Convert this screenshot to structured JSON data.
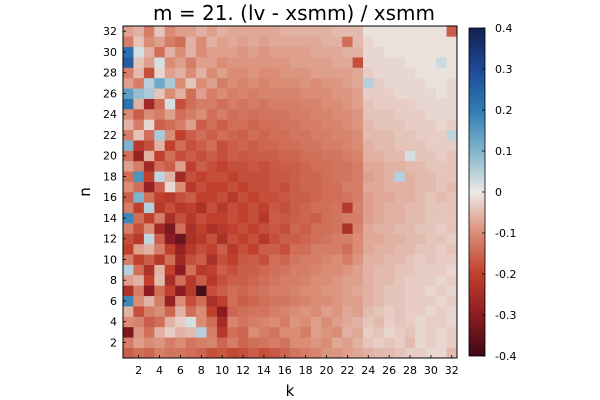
{
  "chart_data": {
    "type": "heatmap",
    "title": "m = 21. (lv - xsmm) / xsmm",
    "xlabel": "k",
    "ylabel": "n",
    "x_range": [
      1,
      32
    ],
    "y_range": [
      1,
      32
    ],
    "x_ticks": [
      2,
      4,
      6,
      8,
      10,
      12,
      14,
      16,
      18,
      20,
      22,
      24,
      26,
      28,
      30,
      32
    ],
    "y_ticks": [
      2,
      4,
      6,
      8,
      10,
      12,
      14,
      16,
      18,
      20,
      22,
      24,
      26,
      28,
      30,
      32
    ],
    "colorbar": {
      "range": [
        -0.4,
        0.4
      ],
      "ticks": [
        "0.4",
        "0.3",
        "0.2",
        "0.1",
        "0",
        "-0.1",
        "-0.2",
        "-0.3",
        "-0.4"
      ],
      "colormap": "diverging blue-white-red",
      "stops": [
        {
          "v": -0.4,
          "color": "#3c0a14"
        },
        {
          "v": -0.3,
          "color": "#8c1c22"
        },
        {
          "v": -0.2,
          "color": "#c0402d"
        },
        {
          "v": -0.1,
          "color": "#da8c75"
        },
        {
          "v": 0.0,
          "color": "#ece9e7"
        },
        {
          "v": 0.1,
          "color": "#80b4cc"
        },
        {
          "v": 0.2,
          "color": "#2e7cb4"
        },
        {
          "v": 0.3,
          "color": "#1e4896"
        },
        {
          "v": 0.4,
          "color": "#14204e"
        }
      ]
    },
    "grid": false,
    "legend": "colorbar-right",
    "row_profile_note": "values z[n][k] for n=1..32, k=1..32",
    "values": [
      [
        -0.16,
        -0.14,
        -0.15,
        -0.12,
        -0.13,
        -0.13,
        -0.14,
        -0.15,
        -0.18,
        -0.17,
        -0.19,
        -0.18,
        -0.16,
        -0.18,
        -0.17,
        -0.15,
        -0.13,
        -0.12,
        -0.11,
        -0.09,
        -0.09,
        -0.08,
        -0.07,
        -0.06,
        -0.05,
        -0.05,
        -0.04,
        -0.03,
        -0.03,
        -0.02,
        -0.02,
        -0.05
      ],
      [
        -0.12,
        -0.08,
        -0.1,
        -0.09,
        -0.12,
        -0.1,
        -0.13,
        -0.12,
        -0.11,
        -0.15,
        -0.12,
        -0.15,
        -0.14,
        -0.13,
        -0.12,
        -0.13,
        -0.1,
        -0.1,
        -0.09,
        -0.1,
        -0.07,
        -0.08,
        -0.06,
        -0.04,
        -0.03,
        -0.04,
        -0.03,
        -0.05,
        -0.02,
        -0.03,
        -0.02,
        -0.03
      ],
      [
        -0.32,
        -0.09,
        -0.14,
        -0.06,
        -0.03,
        -0.06,
        -0.05,
        0.05,
        -0.12,
        -0.22,
        -0.14,
        -0.15,
        -0.1,
        -0.12,
        -0.13,
        -0.1,
        -0.1,
        -0.12,
        -0.08,
        -0.09,
        -0.1,
        -0.06,
        -0.07,
        -0.03,
        -0.04,
        -0.02,
        -0.03,
        -0.04,
        -0.02,
        -0.03,
        -0.02,
        -0.03
      ],
      [
        -0.1,
        -0.11,
        -0.16,
        -0.14,
        -0.06,
        -0.03,
        0.02,
        -0.1,
        -0.14,
        -0.25,
        -0.11,
        -0.13,
        -0.12,
        -0.11,
        -0.1,
        -0.12,
        -0.09,
        -0.1,
        -0.08,
        -0.1,
        -0.08,
        -0.07,
        -0.06,
        -0.04,
        -0.05,
        -0.03,
        -0.04,
        -0.03,
        -0.02,
        -0.03,
        -0.03,
        -0.02
      ],
      [
        -0.06,
        -0.18,
        -0.12,
        -0.1,
        -0.15,
        -0.06,
        -0.14,
        -0.1,
        -0.2,
        -0.3,
        -0.15,
        -0.14,
        -0.13,
        -0.13,
        -0.12,
        -0.11,
        -0.1,
        -0.09,
        -0.1,
        -0.08,
        -0.09,
        -0.07,
        -0.08,
        -0.05,
        -0.04,
        -0.03,
        -0.04,
        -0.03,
        -0.03,
        -0.02,
        -0.03,
        -0.02
      ],
      [
        0.18,
        -0.1,
        -0.06,
        -0.12,
        -0.28,
        -0.1,
        -0.18,
        -0.14,
        -0.24,
        -0.2,
        -0.14,
        -0.16,
        -0.15,
        -0.14,
        -0.13,
        -0.13,
        -0.12,
        -0.11,
        -0.1,
        -0.1,
        -0.09,
        -0.08,
        -0.08,
        -0.06,
        -0.05,
        -0.04,
        -0.04,
        -0.03,
        -0.03,
        -0.03,
        -0.02,
        -0.03
      ],
      [
        -0.24,
        -0.12,
        -0.3,
        -0.14,
        -0.2,
        -0.3,
        -0.22,
        -0.38,
        -0.18,
        -0.16,
        -0.14,
        -0.15,
        -0.14,
        -0.13,
        -0.12,
        -0.12,
        -0.11,
        -0.1,
        -0.1,
        -0.09,
        -0.09,
        -0.08,
        -0.07,
        -0.06,
        -0.05,
        -0.04,
        -0.04,
        -0.03,
        -0.03,
        -0.02,
        -0.03,
        -0.02
      ],
      [
        -0.08,
        -0.06,
        -0.2,
        -0.05,
        -0.25,
        -0.14,
        -0.22,
        -0.16,
        -0.22,
        -0.18,
        -0.16,
        -0.16,
        -0.15,
        -0.14,
        -0.13,
        -0.12,
        -0.12,
        -0.11,
        -0.1,
        -0.1,
        -0.09,
        -0.08,
        -0.08,
        -0.06,
        -0.05,
        -0.05,
        -0.04,
        -0.03,
        -0.03,
        -0.03,
        -0.02,
        -0.03
      ],
      [
        0.05,
        -0.14,
        -0.24,
        -0.06,
        -0.2,
        -0.3,
        -0.14,
        -0.22,
        -0.2,
        -0.16,
        -0.18,
        -0.16,
        -0.16,
        -0.15,
        -0.14,
        -0.13,
        -0.12,
        -0.12,
        -0.11,
        -0.1,
        -0.1,
        -0.09,
        -0.08,
        -0.06,
        -0.05,
        -0.05,
        -0.04,
        -0.04,
        -0.03,
        -0.03,
        -0.03,
        -0.02
      ],
      [
        -0.12,
        -0.2,
        -0.16,
        -0.22,
        -0.14,
        -0.26,
        -0.18,
        -0.16,
        -0.24,
        -0.18,
        -0.2,
        -0.17,
        -0.16,
        -0.18,
        -0.14,
        -0.15,
        -0.13,
        -0.12,
        -0.12,
        -0.11,
        -0.1,
        -0.12,
        -0.09,
        -0.06,
        -0.06,
        -0.05,
        -0.05,
        -0.04,
        -0.03,
        -0.04,
        -0.03,
        -0.03
      ],
      [
        -0.2,
        -0.08,
        -0.06,
        -0.12,
        -0.2,
        -0.28,
        -0.22,
        -0.18,
        -0.2,
        -0.16,
        -0.22,
        -0.18,
        -0.2,
        -0.16,
        -0.16,
        -0.18,
        -0.14,
        -0.14,
        -0.12,
        -0.12,
        -0.12,
        -0.14,
        -0.1,
        -0.07,
        -0.06,
        -0.06,
        -0.05,
        -0.05,
        -0.04,
        -0.04,
        -0.03,
        -0.04
      ],
      [
        -0.18,
        -0.22,
        0.04,
        -0.16,
        -0.3,
        -0.34,
        -0.24,
        -0.22,
        -0.18,
        -0.24,
        -0.18,
        -0.2,
        -0.18,
        -0.22,
        -0.18,
        -0.16,
        -0.16,
        -0.15,
        -0.14,
        -0.13,
        -0.12,
        -0.12,
        -0.1,
        -0.07,
        -0.07,
        -0.06,
        -0.06,
        -0.05,
        -0.05,
        -0.04,
        -0.04,
        -0.03
      ],
      [
        -0.12,
        -0.18,
        -0.1,
        -0.26,
        -0.32,
        -0.14,
        -0.24,
        -0.2,
        -0.24,
        -0.22,
        -0.2,
        -0.18,
        -0.2,
        -0.18,
        -0.17,
        -0.18,
        -0.15,
        -0.16,
        -0.14,
        -0.14,
        -0.13,
        -0.24,
        -0.11,
        -0.07,
        -0.06,
        -0.06,
        -0.05,
        -0.05,
        -0.04,
        -0.04,
        -0.03,
        -0.04
      ],
      [
        0.18,
        -0.14,
        -0.2,
        -0.12,
        -0.24,
        -0.18,
        -0.22,
        -0.18,
        -0.2,
        -0.2,
        -0.18,
        -0.2,
        -0.18,
        -0.22,
        -0.16,
        -0.17,
        -0.16,
        -0.15,
        -0.16,
        -0.14,
        -0.13,
        -0.12,
        -0.12,
        -0.08,
        -0.07,
        -0.06,
        -0.06,
        -0.05,
        -0.05,
        -0.04,
        -0.04,
        -0.04
      ],
      [
        -0.12,
        -0.2,
        0.05,
        -0.22,
        -0.18,
        -0.22,
        -0.2,
        -0.24,
        -0.18,
        -0.22,
        -0.18,
        -0.2,
        -0.18,
        -0.2,
        -0.17,
        -0.18,
        -0.16,
        -0.15,
        -0.14,
        -0.14,
        -0.13,
        -0.22,
        -0.11,
        -0.08,
        -0.07,
        -0.06,
        -0.06,
        -0.05,
        -0.05,
        -0.04,
        -0.04,
        -0.04
      ],
      [
        -0.16,
        0.1,
        -0.14,
        -0.2,
        -0.22,
        -0.18,
        -0.16,
        -0.2,
        -0.2,
        -0.18,
        -0.22,
        -0.18,
        -0.2,
        -0.18,
        -0.18,
        -0.17,
        -0.16,
        -0.16,
        -0.15,
        -0.14,
        -0.14,
        -0.13,
        -0.12,
        -0.08,
        -0.07,
        -0.07,
        -0.06,
        -0.06,
        -0.05,
        -0.04,
        -0.05,
        -0.04
      ],
      [
        -0.1,
        -0.14,
        -0.28,
        -0.16,
        -0.02,
        -0.1,
        -0.22,
        -0.18,
        -0.2,
        -0.2,
        -0.18,
        -0.2,
        -0.18,
        -0.18,
        -0.17,
        -0.18,
        -0.16,
        -0.15,
        -0.15,
        -0.14,
        -0.14,
        -0.12,
        -0.12,
        -0.07,
        -0.07,
        -0.06,
        -0.06,
        -0.06,
        -0.05,
        -0.05,
        -0.04,
        -0.05
      ],
      [
        -0.14,
        0.16,
        -0.2,
        0.04,
        -0.06,
        -0.26,
        -0.18,
        -0.2,
        -0.18,
        -0.18,
        -0.2,
        -0.18,
        -0.18,
        -0.18,
        -0.17,
        -0.17,
        -0.16,
        -0.15,
        -0.15,
        -0.14,
        -0.13,
        -0.13,
        -0.12,
        -0.08,
        -0.07,
        -0.06,
        0.05,
        -0.06,
        -0.05,
        -0.05,
        -0.04,
        -0.04
      ],
      [
        -0.08,
        -0.12,
        -0.26,
        -0.14,
        -0.16,
        -0.08,
        -0.2,
        -0.16,
        -0.18,
        -0.2,
        -0.18,
        -0.18,
        -0.17,
        -0.18,
        -0.17,
        -0.16,
        -0.16,
        -0.15,
        -0.14,
        -0.14,
        -0.13,
        -0.13,
        -0.12,
        -0.07,
        -0.07,
        -0.06,
        -0.06,
        -0.05,
        -0.05,
        -0.04,
        -0.04,
        -0.04
      ],
      [
        -0.14,
        -0.28,
        -0.06,
        -0.2,
        -0.14,
        -0.18,
        -0.16,
        -0.18,
        -0.16,
        -0.18,
        -0.16,
        -0.17,
        -0.16,
        -0.16,
        -0.16,
        -0.15,
        -0.15,
        -0.14,
        -0.14,
        -0.13,
        -0.13,
        -0.12,
        -0.11,
        -0.06,
        -0.06,
        -0.05,
        -0.05,
        0.02,
        -0.04,
        -0.04,
        -0.03,
        -0.04
      ],
      [
        0.1,
        -0.22,
        -0.18,
        -0.06,
        -0.2,
        -0.14,
        -0.18,
        -0.16,
        -0.14,
        -0.18,
        -0.16,
        -0.15,
        -0.16,
        -0.15,
        -0.15,
        -0.14,
        -0.14,
        -0.13,
        -0.13,
        -0.12,
        -0.12,
        -0.11,
        -0.1,
        -0.06,
        -0.05,
        -0.05,
        -0.04,
        -0.04,
        -0.04,
        -0.03,
        -0.03,
        -0.03
      ],
      [
        -0.12,
        -0.04,
        -0.14,
        0.06,
        -0.1,
        -0.2,
        -0.16,
        -0.14,
        -0.16,
        -0.14,
        -0.15,
        -0.16,
        -0.14,
        -0.15,
        -0.14,
        -0.14,
        -0.13,
        -0.13,
        -0.12,
        -0.12,
        -0.11,
        -0.11,
        -0.1,
        -0.05,
        -0.05,
        -0.05,
        -0.04,
        -0.04,
        -0.03,
        -0.03,
        -0.03,
        0.04
      ],
      [
        -0.06,
        -0.12,
        -0.02,
        -0.16,
        -0.14,
        -0.12,
        -0.08,
        -0.16,
        -0.14,
        -0.16,
        -0.14,
        -0.14,
        -0.15,
        -0.14,
        -0.14,
        -0.13,
        -0.13,
        -0.12,
        -0.12,
        -0.11,
        -0.11,
        -0.1,
        -0.09,
        -0.05,
        -0.04,
        -0.04,
        -0.04,
        -0.03,
        -0.03,
        -0.03,
        -0.02,
        -0.03
      ],
      [
        -0.1,
        -0.16,
        -0.1,
        -0.12,
        -0.08,
        -0.14,
        -0.12,
        -0.1,
        -0.14,
        -0.12,
        -0.14,
        -0.13,
        -0.14,
        -0.13,
        -0.13,
        -0.13,
        -0.12,
        -0.12,
        -0.11,
        -0.11,
        -0.1,
        -0.1,
        -0.09,
        -0.04,
        -0.04,
        -0.04,
        -0.03,
        -0.03,
        -0.03,
        -0.02,
        -0.02,
        -0.02
      ],
      [
        0.22,
        -0.06,
        -0.26,
        -0.14,
        0.02,
        -0.18,
        -0.14,
        -0.12,
        -0.12,
        -0.14,
        -0.12,
        -0.13,
        -0.12,
        -0.13,
        -0.12,
        -0.12,
        -0.12,
        -0.11,
        -0.11,
        -0.1,
        -0.1,
        -0.09,
        -0.08,
        -0.04,
        -0.03,
        -0.03,
        -0.03,
        -0.03,
        -0.02,
        -0.02,
        -0.02,
        -0.02
      ],
      [
        0.14,
        0.08,
        0.06,
        -0.04,
        -0.1,
        -0.06,
        -0.14,
        -0.08,
        -0.12,
        -0.1,
        -0.12,
        -0.11,
        -0.12,
        -0.11,
        -0.11,
        -0.11,
        -0.11,
        -0.1,
        -0.1,
        -0.1,
        -0.09,
        -0.09,
        -0.08,
        -0.03,
        -0.03,
        -0.03,
        -0.02,
        -0.02,
        -0.02,
        -0.02,
        -0.01,
        -0.02
      ],
      [
        -0.08,
        -0.12,
        0.05,
        0.12,
        0.06,
        -0.1,
        -0.04,
        -0.1,
        -0.08,
        -0.12,
        -0.1,
        -0.11,
        -0.1,
        -0.11,
        -0.1,
        -0.1,
        -0.1,
        -0.09,
        -0.1,
        -0.09,
        -0.09,
        -0.08,
        -0.07,
        0.05,
        -0.03,
        -0.02,
        -0.02,
        -0.02,
        -0.02,
        -0.01,
        -0.01,
        -0.02
      ],
      [
        -0.12,
        -0.05,
        -0.18,
        -0.02,
        -0.08,
        -0.06,
        -0.1,
        -0.06,
        -0.1,
        -0.08,
        -0.1,
        -0.1,
        -0.09,
        -0.1,
        -0.1,
        -0.09,
        -0.09,
        -0.09,
        -0.08,
        -0.08,
        -0.08,
        -0.08,
        -0.07,
        -0.03,
        -0.02,
        -0.02,
        -0.02,
        -0.02,
        -0.01,
        -0.01,
        -0.01,
        -0.01
      ],
      [
        0.26,
        -0.04,
        -0.08,
        0.02,
        -0.1,
        -0.08,
        -0.12,
        -0.08,
        -0.08,
        -0.1,
        -0.09,
        -0.09,
        -0.09,
        -0.09,
        -0.09,
        -0.09,
        -0.08,
        -0.08,
        -0.08,
        -0.08,
        -0.07,
        -0.07,
        -0.18,
        -0.02,
        -0.02,
        -0.02,
        -0.02,
        -0.01,
        -0.01,
        -0.01,
        0.03,
        -0.01
      ],
      [
        0.22,
        0.02,
        -0.06,
        -0.14,
        -0.06,
        -0.1,
        -0.06,
        -0.1,
        -0.08,
        -0.08,
        -0.08,
        -0.09,
        -0.08,
        -0.09,
        -0.08,
        -0.08,
        -0.08,
        -0.08,
        -0.07,
        -0.07,
        -0.07,
        -0.06,
        -0.06,
        -0.02,
        -0.02,
        -0.01,
        -0.01,
        -0.01,
        -0.01,
        -0.01,
        -0.01,
        -0.01
      ],
      [
        -0.12,
        -0.04,
        -0.1,
        -0.08,
        -0.12,
        -0.14,
        -0.06,
        -0.1,
        -0.06,
        -0.08,
        -0.07,
        -0.08,
        -0.07,
        -0.08,
        -0.07,
        -0.07,
        -0.07,
        -0.07,
        -0.07,
        -0.06,
        -0.06,
        -0.14,
        -0.05,
        -0.02,
        -0.01,
        -0.01,
        -0.01,
        -0.01,
        -0.01,
        -0.01,
        -0.01,
        -0.01
      ],
      [
        -0.08,
        -0.06,
        -0.12,
        -0.04,
        -0.1,
        -0.08,
        -0.08,
        -0.06,
        -0.08,
        -0.06,
        -0.07,
        -0.07,
        -0.07,
        -0.07,
        -0.07,
        -0.06,
        -0.06,
        -0.06,
        -0.06,
        -0.06,
        -0.05,
        -0.05,
        -0.05,
        -0.01,
        -0.01,
        -0.01,
        -0.01,
        -0.01,
        -0.01,
        -0.01,
        -0.01,
        -0.16
      ]
    ]
  }
}
